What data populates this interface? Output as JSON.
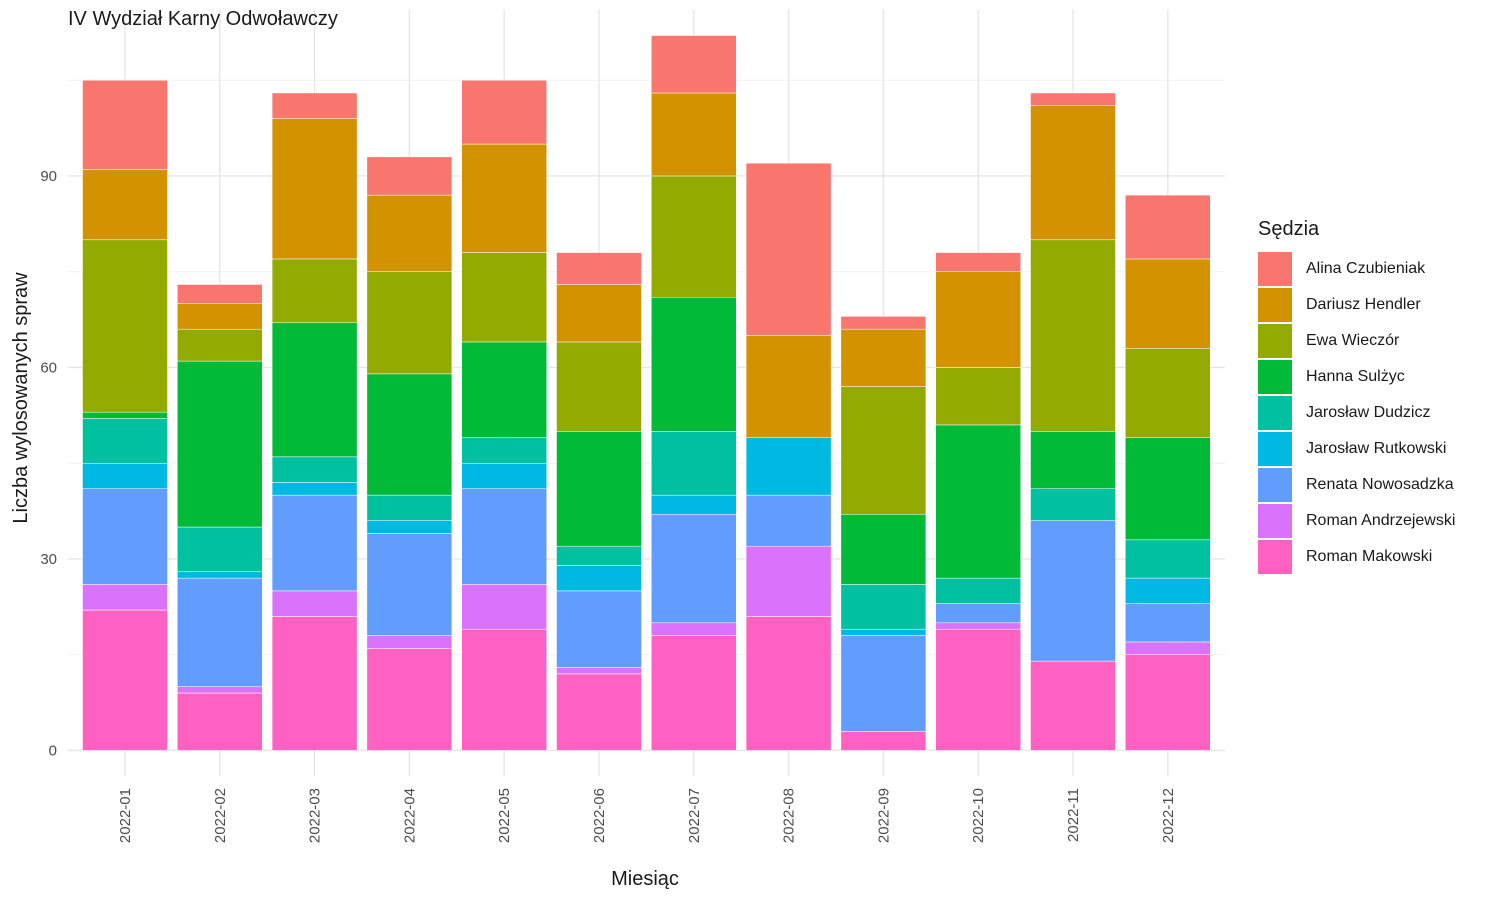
{
  "chart_data": {
    "type": "bar",
    "stacked": true,
    "title": "IV Wydział Karny Odwoławczy",
    "xlabel": "Miesiąc",
    "ylabel": "Liczba wylosowanych spraw",
    "ylim": [
      -4,
      116
    ],
    "yticks": [
      0,
      30,
      60,
      90
    ],
    "grid": true,
    "legend_position": "right",
    "legend_title": "Sędzia",
    "categories": [
      "2022-01",
      "2022-02",
      "2022-03",
      "2022-04",
      "2022-05",
      "2022-06",
      "2022-07",
      "2022-08",
      "2022-09",
      "2022-10",
      "2022-11",
      "2022-12"
    ],
    "stack_order_bottom_to_top": [
      "Roman Makowski",
      "Roman Andrzejewski",
      "Renata Nowosadzka",
      "Jarosław Rutkowski",
      "Jarosław Dudzicz",
      "Hanna Sulżyc",
      "Ewa Wieczór",
      "Dariusz Hendler",
      "Alina Czubieniak"
    ],
    "series": [
      {
        "name": "Alina Czubieniak",
        "color": "#F8766D",
        "values": [
          14,
          3,
          4,
          6,
          10,
          5,
          9,
          27,
          2,
          3,
          2,
          10
        ]
      },
      {
        "name": "Dariusz Hendler",
        "color": "#D39200",
        "values": [
          11,
          4,
          22,
          12,
          17,
          9,
          13,
          16,
          9,
          15,
          21,
          14
        ]
      },
      {
        "name": "Ewa Wieczór",
        "color": "#93AA00",
        "values": [
          27,
          5,
          10,
          16,
          14,
          14,
          19,
          0,
          20,
          9,
          30,
          14
        ]
      },
      {
        "name": "Hanna Sulżyc",
        "color": "#00BA38",
        "values": [
          1,
          26,
          21,
          19,
          15,
          18,
          21,
          0,
          11,
          24,
          9,
          16
        ]
      },
      {
        "name": "Jarosław Dudzicz",
        "color": "#00C19F",
        "values": [
          7,
          7,
          4,
          4,
          4,
          3,
          10,
          0,
          7,
          4,
          5,
          6
        ]
      },
      {
        "name": "Jarosław Rutkowski",
        "color": "#00B9E3",
        "values": [
          4,
          1,
          2,
          2,
          4,
          4,
          3,
          9,
          1,
          0,
          0,
          4
        ]
      },
      {
        "name": "Renata Nowosadzka",
        "color": "#619CFF",
        "values": [
          15,
          17,
          15,
          16,
          15,
          12,
          17,
          8,
          15,
          3,
          22,
          6
        ]
      },
      {
        "name": "Roman Andrzejewski",
        "color": "#DB72FB",
        "values": [
          4,
          1,
          4,
          2,
          7,
          1,
          2,
          11,
          0,
          1,
          0,
          2
        ]
      },
      {
        "name": "Roman Makowski",
        "color": "#FF61C3",
        "values": [
          22,
          9,
          21,
          16,
          19,
          12,
          18,
          21,
          3,
          19,
          14,
          15
        ]
      }
    ]
  }
}
